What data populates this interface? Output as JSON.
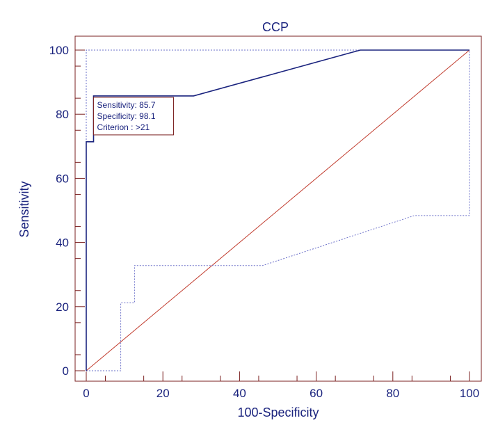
{
  "chart_data": {
    "type": "line",
    "title": "CCP",
    "xlabel": "100-Specificity",
    "ylabel": "Sensitivity",
    "xlim": [
      0,
      100
    ],
    "ylim": [
      0,
      100
    ],
    "x_ticks": [
      "0",
      "20",
      "40",
      "60",
      "80",
      "100"
    ],
    "y_ticks": [
      "0",
      "20",
      "40",
      "60",
      "80",
      "100"
    ],
    "grid": false,
    "series": [
      {
        "role": "roc-curve",
        "style": "solid",
        "x": [
          0,
          0,
          0,
          1.9,
          1.9,
          28,
          71.5,
          100
        ],
        "y": [
          0,
          71.4,
          71.4,
          71.4,
          85.7,
          85.7,
          100,
          100
        ]
      },
      {
        "role": "upper-confidence-bound",
        "style": "dotted",
        "x": [
          0,
          0,
          100,
          100
        ],
        "y": [
          0,
          100,
          100,
          100
        ]
      },
      {
        "role": "lower-confidence-bound",
        "style": "dotted",
        "x": [
          0,
          9,
          9,
          12.6,
          12.6,
          46,
          85.6,
          100,
          100
        ],
        "y": [
          0,
          0,
          21.2,
          21.2,
          32.8,
          32.8,
          48.4,
          48.4,
          100
        ]
      },
      {
        "role": "diagonal-reference",
        "style": "solid",
        "x": [
          0,
          100
        ],
        "y": [
          0,
          100
        ]
      }
    ],
    "annotation": {
      "lines": [
        "Sensitivity: 85.7",
        "Specificity: 98.1",
        "Criterion : >21"
      ],
      "anchor_x": 1.9,
      "anchor_y": 85.7
    },
    "colors": {
      "roc_curve": "#1a237e",
      "confidence_bounds": "#6a6fc8",
      "diagonal": "#c0392b",
      "frame": "#7a1f1f",
      "text": "#1a237e"
    }
  }
}
